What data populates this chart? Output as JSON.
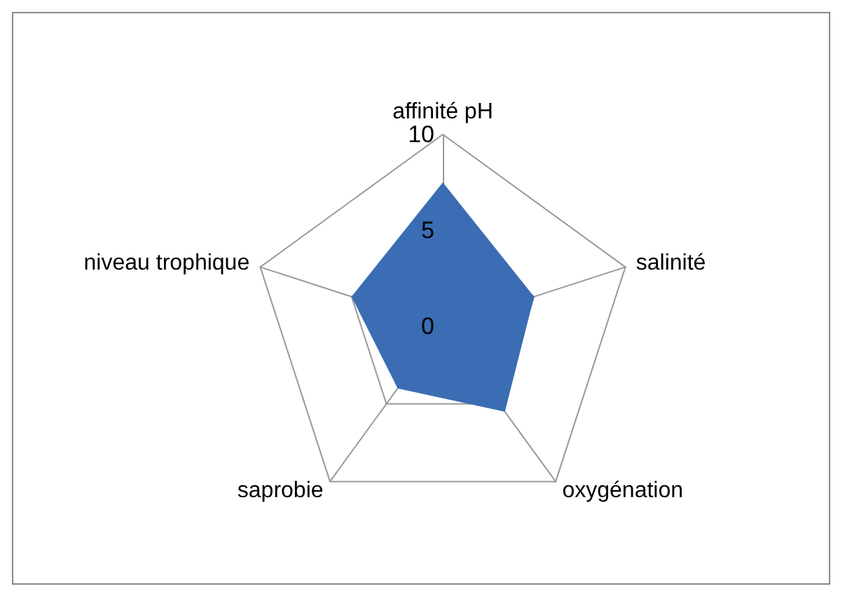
{
  "chart_data": {
    "type": "radar",
    "categories": [
      "affinité pH",
      "salinité",
      "oxygénation",
      "saprobie",
      "niveau trophique"
    ],
    "series": [
      {
        "color": "#3a6db3",
        "values": [
          7.5,
          5,
          5.5,
          4,
          5
        ]
      }
    ],
    "ylim": [
      0,
      10
    ],
    "yticks": [
      0,
      5,
      10
    ]
  }
}
